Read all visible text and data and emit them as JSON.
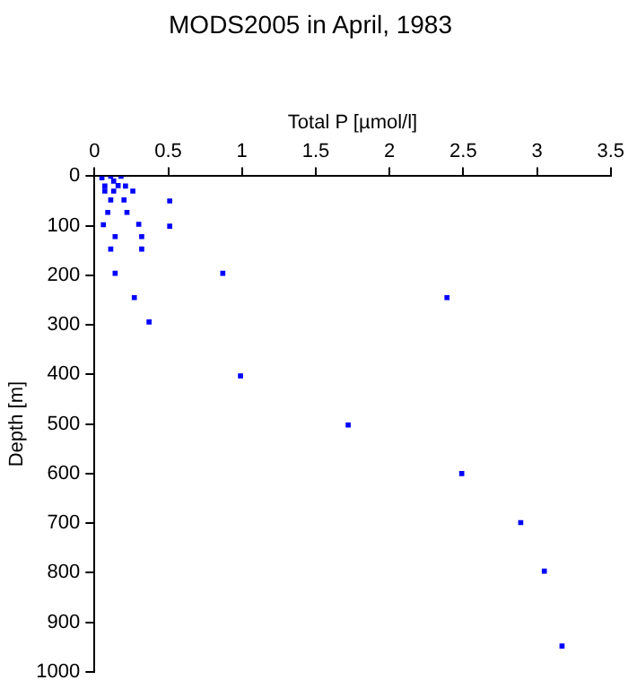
{
  "chart_data": {
    "type": "scatter",
    "title": "MODS2005 in April, 1983",
    "xlabel": "Total P [µmol/l]",
    "ylabel": "Depth [m]",
    "x": [
      0.18,
      0.05,
      0.11,
      0.13,
      0.07,
      0.16,
      0.21,
      0.07,
      0.13,
      0.26,
      0.11,
      0.2,
      0.51,
      0.09,
      0.22,
      0.06,
      0.3,
      0.51,
      0.14,
      0.32,
      0.11,
      0.32,
      0.14,
      0.87,
      0.27,
      2.39,
      0.37,
      0.99,
      1.72,
      2.49,
      2.89,
      3.05,
      3.17
    ],
    "values": [
      0,
      3,
      0,
      10,
      20,
      19,
      20,
      30,
      30,
      30,
      48,
      48,
      50,
      73,
      73,
      98,
      97,
      101,
      122,
      122,
      147,
      147,
      196,
      196,
      245,
      245,
      294,
      403,
      502,
      600,
      699,
      797,
      948
    ],
    "color": "#0000ff",
    "marker": "square",
    "grid": false,
    "legend": false,
    "xlim": [
      0,
      3.5
    ],
    "xticks": [
      0,
      0.5,
      1,
      1.5,
      2,
      2.5,
      3,
      3.5
    ],
    "ylim": [
      1000,
      0
    ],
    "yticks": [
      0,
      100,
      200,
      300,
      400,
      500,
      600,
      700,
      800,
      900,
      1000
    ]
  }
}
